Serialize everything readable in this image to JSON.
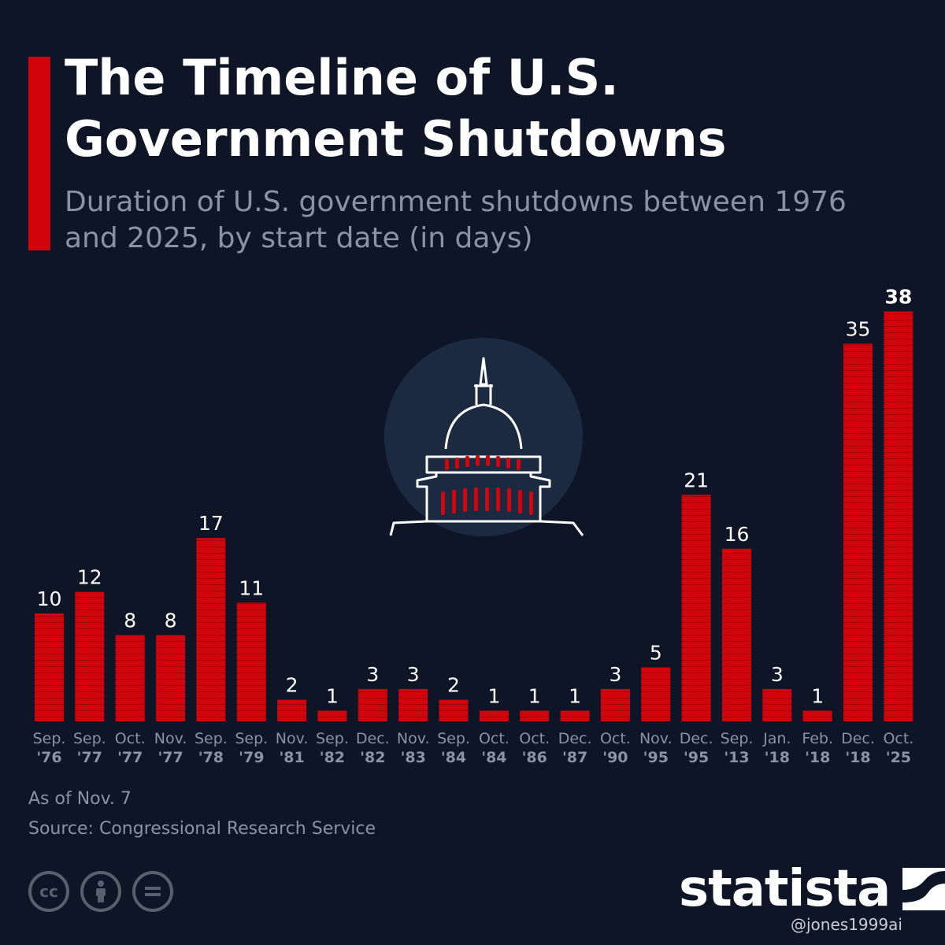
{
  "header": {
    "title": "The Timeline of U.S. Government Shutdowns",
    "subtitle": "Duration of U.S. government shutdowns between 1976 and 2025, by start date (in days)"
  },
  "footer": {
    "as_of": "As of Nov. 7",
    "source": "Source: Congressional Research Service",
    "brand": "statista",
    "watermark": "@jones1999ai"
  },
  "colors": {
    "background": "#0d1526",
    "bar": "#d2050d",
    "accent": "#d2050d",
    "text": "#ffffff",
    "muted": "#8a93a5"
  },
  "chart_data": {
    "type": "bar",
    "categories": [
      [
        "Sep.",
        "'76"
      ],
      [
        "Sep.",
        "'77"
      ],
      [
        "Oct.",
        "'77"
      ],
      [
        "Nov.",
        "'77"
      ],
      [
        "Sep.",
        "'78"
      ],
      [
        "Sep.",
        "'79"
      ],
      [
        "Nov.",
        "'81"
      ],
      [
        "Sep.",
        "'82"
      ],
      [
        "Dec.",
        "'82"
      ],
      [
        "Nov.",
        "'83"
      ],
      [
        "Sep.",
        "'84"
      ],
      [
        "Oct.",
        "'84"
      ],
      [
        "Oct.",
        "'86"
      ],
      [
        "Dec.",
        "'87"
      ],
      [
        "Oct.",
        "'90"
      ],
      [
        "Nov.",
        "'95"
      ],
      [
        "Dec.",
        "'95"
      ],
      [
        "Sep.",
        "'13"
      ],
      [
        "Jan.",
        "'18"
      ],
      [
        "Feb.",
        "'18"
      ],
      [
        "Dec.",
        "'18"
      ],
      [
        "Oct.",
        "'25"
      ]
    ],
    "values": [
      10,
      12,
      8,
      8,
      17,
      11,
      2,
      1,
      3,
      3,
      2,
      1,
      1,
      1,
      3,
      5,
      21,
      16,
      3,
      1,
      35,
      38
    ],
    "highlight_last": true,
    "ylim": [
      0,
      38
    ],
    "grid": false,
    "legend": "none"
  }
}
